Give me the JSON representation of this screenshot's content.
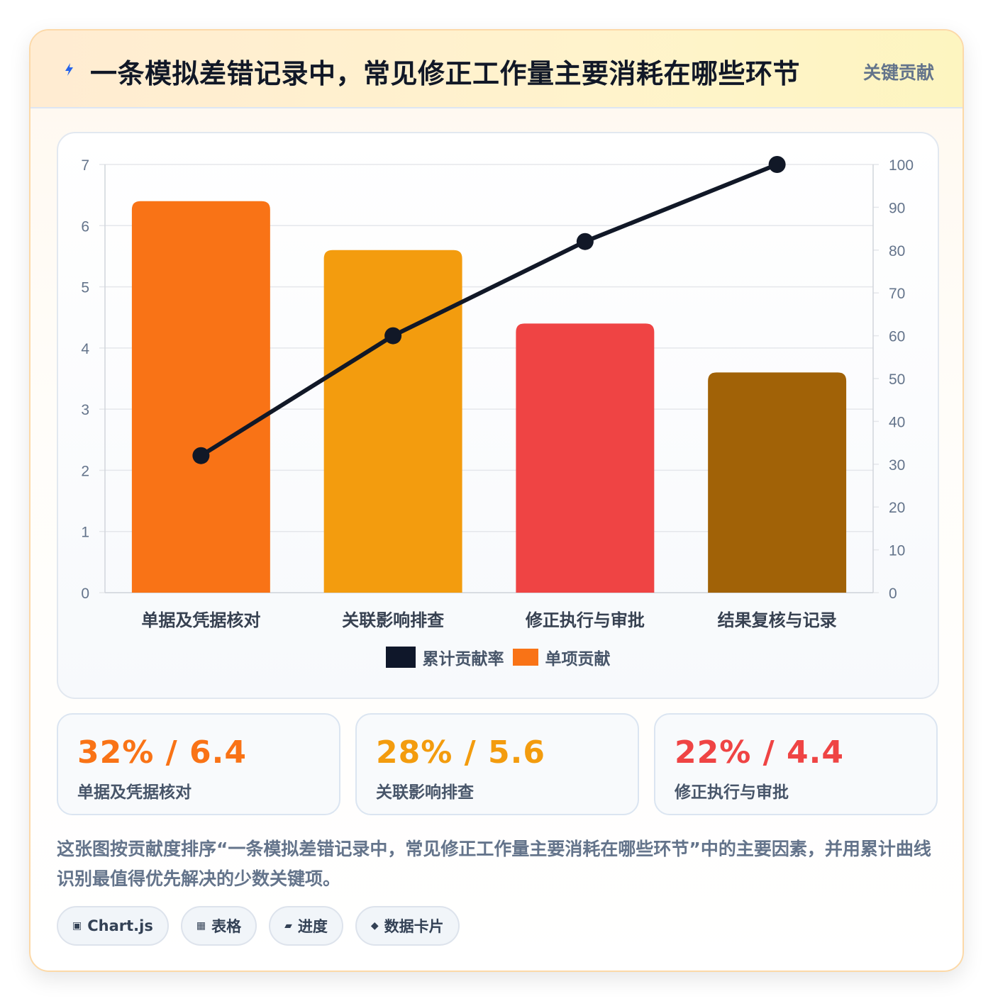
{
  "header": {
    "title": "一条模拟差错记录中，常见修正工作量主要消耗在哪些环节",
    "tag": "关键贡献",
    "icon": "lightning-icon"
  },
  "chart_data": {
    "type": "bar",
    "title": "",
    "categories": [
      "单据及凭据核对",
      "关联影响排查",
      "修正执行与审批",
      "结果复核与记录"
    ],
    "series": [
      {
        "name": "单项贡献",
        "type": "bar",
        "axis": "left",
        "values": [
          6.4,
          5.6,
          4.4,
          3.6
        ],
        "colors": [
          "#f97316",
          "#f39c0e",
          "#ef4444",
          "#a16207"
        ]
      },
      {
        "name": "累计贡献率",
        "type": "line",
        "axis": "right",
        "values": [
          32,
          60,
          82,
          100
        ],
        "color": "#111827"
      }
    ],
    "ylim_left": [
      0,
      7
    ],
    "yticks_left": [
      "0",
      "1",
      "2",
      "3",
      "4",
      "5",
      "6",
      "7"
    ],
    "ylim_right": [
      0,
      100
    ],
    "yticks_right": [
      "0",
      "10",
      "20",
      "30",
      "40",
      "50",
      "60",
      "70",
      "80",
      "90",
      "100"
    ],
    "grid": true,
    "legend_position": "bottom",
    "legend": [
      "累计贡献率",
      "单项贡献"
    ]
  },
  "stats": [
    {
      "value": "32% / 6.4",
      "label": "单据及凭据核对",
      "color": "#f97316"
    },
    {
      "value": "28% / 5.6",
      "label": "关联影响排查",
      "color": "#f39c0e"
    },
    {
      "value": "22% / 4.4",
      "label": "修正执行与审批",
      "color": "#ef4444"
    }
  ],
  "description": "这张图按贡献度排序“一条模拟差错记录中，常见修正工作量主要消耗在哪些环节”中的主要因素，并用累计曲线识别最值得优先解决的少数关键项。",
  "chips": [
    {
      "icon": "▣",
      "label": "Chart.js"
    },
    {
      "icon": "▦",
      "label": "表格"
    },
    {
      "icon": "▰",
      "label": "进度"
    },
    {
      "icon": "◆",
      "label": "数据卡片"
    }
  ]
}
